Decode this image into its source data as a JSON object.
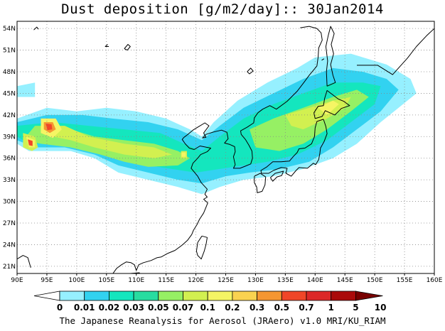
{
  "title": "Dust deposition [g/m2/day]:: 30Jan2014",
  "credit": "The Japanese Reanalysis for Aerosol (JRAero) v1.0 MRI/KU_RIAM",
  "axes": {
    "lon_labels": [
      "90E",
      "95E",
      "100E",
      "105E",
      "110E",
      "115E",
      "120E",
      "125E",
      "130E",
      "135E",
      "140E",
      "145E",
      "150E",
      "155E",
      "160E"
    ],
    "lat_labels": [
      "54N",
      "51N",
      "48N",
      "45N",
      "42N",
      "39N",
      "36N",
      "33N",
      "30N",
      "27N",
      "24N",
      "21N"
    ],
    "lon_range": [
      90,
      160
    ],
    "lat_range": [
      20,
      55
    ],
    "grid": "dotted"
  },
  "colorbar": {
    "labels": [
      "0",
      "0.01",
      "0.02",
      "0.03",
      "0.05",
      "0.07",
      "0.1",
      "0.2",
      "0.3",
      "0.5",
      "0.7",
      "1",
      "5",
      "10"
    ],
    "colors": [
      "#ffffff",
      "#96f0ff",
      "#32d2f0",
      "#14e6be",
      "#28dca0",
      "#96f064",
      "#d2f050",
      "#f5f564",
      "#fad250",
      "#f59632",
      "#f04628",
      "#dc2828",
      "#aa0a0a",
      "#780000"
    ]
  },
  "dust_regions": [
    {
      "level": 1,
      "polygon": [
        [
          90,
          41.5
        ],
        [
          95,
          43
        ],
        [
          100,
          42.5
        ],
        [
          105,
          43
        ],
        [
          110,
          42.5
        ],
        [
          115,
          41.5
        ],
        [
          119,
          40
        ],
        [
          121,
          39
        ],
        [
          123,
          41
        ],
        [
          127,
          44
        ],
        [
          132,
          46.5
        ],
        [
          137,
          48.5
        ],
        [
          140,
          50
        ],
        [
          146,
          50.5
        ],
        [
          152,
          49
        ],
        [
          156,
          47
        ],
        [
          157,
          45
        ],
        [
          154,
          43
        ],
        [
          151,
          41
        ],
        [
          147,
          38
        ],
        [
          143,
          36
        ],
        [
          138,
          34.5
        ],
        [
          133,
          33.5
        ],
        [
          128,
          33
        ],
        [
          124,
          32
        ],
        [
          121,
          31
        ],
        [
          117,
          32
        ],
        [
          112,
          33
        ],
        [
          107,
          34
        ],
        [
          103,
          36
        ],
        [
          99,
          37
        ],
        [
          95,
          37
        ],
        [
          92,
          37
        ],
        [
          90,
          38
        ]
      ]
    },
    {
      "level": 1,
      "polygon": [
        [
          90,
          46
        ],
        [
          93,
          46.5
        ],
        [
          93,
          44.5
        ],
        [
          90,
          44.5
        ]
      ]
    },
    {
      "level": 2,
      "polygon": [
        [
          90,
          41
        ],
        [
          95,
          42
        ],
        [
          101,
          42
        ],
        [
          106,
          41.5
        ],
        [
          112,
          41
        ],
        [
          117,
          40
        ],
        [
          121,
          38.5
        ],
        [
          124,
          40.5
        ],
        [
          128,
          43
        ],
        [
          133,
          45
        ],
        [
          138,
          47
        ],
        [
          143,
          48.5
        ],
        [
          148,
          48
        ],
        [
          152,
          47
        ],
        [
          154,
          45.5
        ],
        [
          151,
          42.5
        ],
        [
          147,
          40
        ],
        [
          143,
          37.5
        ],
        [
          139,
          35.5
        ],
        [
          134,
          34.5
        ],
        [
          129,
          34
        ],
        [
          125,
          33.5
        ],
        [
          121,
          32.5
        ],
        [
          117,
          33
        ],
        [
          112,
          34
        ],
        [
          107,
          35
        ],
        [
          103,
          36.5
        ],
        [
          98,
          37.5
        ],
        [
          93,
          37.5
        ],
        [
          90,
          38.5
        ]
      ]
    },
    {
      "level": 3,
      "polygon": [
        [
          90,
          40.5
        ],
        [
          96,
          41
        ],
        [
          102,
          40.5
        ],
        [
          108,
          40
        ],
        [
          114,
          39.5
        ],
        [
          118,
          38
        ],
        [
          121,
          37
        ],
        [
          124,
          39
        ],
        [
          128,
          41.5
        ],
        [
          133,
          43.5
        ],
        [
          138,
          45
        ],
        [
          143,
          46.5
        ],
        [
          148,
          46.5
        ],
        [
          151,
          46
        ],
        [
          150,
          43.5
        ],
        [
          146,
          41
        ],
        [
          142,
          38.5
        ],
        [
          137,
          36.5
        ],
        [
          132,
          35.5
        ],
        [
          128,
          35
        ],
        [
          124,
          34.5
        ],
        [
          120,
          34
        ],
        [
          116,
          34.5
        ],
        [
          112,
          35
        ],
        [
          107,
          36
        ],
        [
          102,
          37.5
        ],
        [
          97,
          38
        ],
        [
          92,
          38
        ],
        [
          90,
          39
        ]
      ]
    },
    {
      "level": 5,
      "polygon": [
        [
          93,
          40.5
        ],
        [
          97,
          40.5
        ],
        [
          103,
          39
        ],
        [
          108,
          38.5
        ],
        [
          113,
          38
        ],
        [
          117,
          37
        ],
        [
          119,
          36
        ],
        [
          117,
          35
        ],
        [
          112,
          34.8
        ],
        [
          108,
          35.5
        ],
        [
          104,
          36.5
        ],
        [
          99,
          37.5
        ],
        [
          94,
          38
        ],
        [
          91,
          38.5
        ]
      ]
    },
    {
      "level": 5,
      "polygon": [
        [
          129,
          40
        ],
        [
          133,
          41.5
        ],
        [
          138,
          43
        ],
        [
          143,
          44.5
        ],
        [
          147,
          45.5
        ],
        [
          149,
          44.5
        ],
        [
          146,
          42.5
        ],
        [
          142,
          40
        ],
        [
          138,
          38
        ],
        [
          134,
          37
        ],
        [
          130,
          37.5
        ]
      ]
    },
    {
      "level": 6,
      "polygon": [
        [
          95,
          40.5
        ],
        [
          98,
          40.5
        ],
        [
          102,
          39
        ],
        [
          108,
          38
        ],
        [
          113,
          37.5
        ],
        [
          116,
          36.5
        ],
        [
          113,
          36
        ],
        [
          108,
          36.5
        ],
        [
          103,
          37.5
        ],
        [
          99,
          38.5
        ],
        [
          96,
          39
        ]
      ]
    },
    {
      "level": 6,
      "polygon": [
        [
          91,
          39.5
        ],
        [
          93,
          39
        ],
        [
          93.5,
          37.5
        ],
        [
          92.5,
          37
        ],
        [
          91,
          37.5
        ]
      ]
    },
    {
      "level": 6,
      "polygon": [
        [
          135,
          42
        ],
        [
          139,
          43
        ],
        [
          143,
          44
        ],
        [
          146,
          44.5
        ],
        [
          145,
          43
        ],
        [
          142,
          41.5
        ],
        [
          138,
          40
        ],
        [
          136,
          40.5
        ]
      ]
    },
    {
      "level": 6,
      "polygon": [
        [
          117.5,
          37
        ],
        [
          118.5,
          37
        ],
        [
          118.5,
          36
        ],
        [
          117.5,
          36
        ]
      ]
    },
    {
      "level": 7,
      "polygon": [
        [
          94,
          41.5
        ],
        [
          96.5,
          41.5
        ],
        [
          97.5,
          40
        ],
        [
          96,
          38.8
        ],
        [
          94,
          39.5
        ]
      ]
    },
    {
      "level": 7,
      "polygon": [
        [
          91.5,
          39
        ],
        [
          93,
          38.5
        ],
        [
          93,
          37.5
        ],
        [
          92,
          37.5
        ]
      ]
    },
    {
      "level": 7,
      "polygon": [
        [
          117.6,
          36.8
        ],
        [
          118.3,
          36.8
        ],
        [
          118.3,
          36.2
        ],
        [
          117.6,
          36.2
        ]
      ]
    },
    {
      "level": 7,
      "polygon": [
        [
          140.5,
          43
        ],
        [
          143,
          44
        ],
        [
          144,
          43.5
        ],
        [
          142,
          42
        ]
      ]
    },
    {
      "level": 9,
      "polygon": [
        [
          94.5,
          41
        ],
        [
          96,
          41
        ],
        [
          96.5,
          40
        ],
        [
          95.5,
          39.5
        ],
        [
          94.5,
          40
        ]
      ]
    },
    {
      "level": 10,
      "polygon": [
        [
          94.8,
          40.8
        ],
        [
          95.8,
          40.7
        ],
        [
          95.9,
          40
        ],
        [
          95.1,
          39.9
        ]
      ]
    },
    {
      "level": 10,
      "polygon": [
        [
          91.8,
          38.6
        ],
        [
          92.6,
          38.4
        ],
        [
          92.6,
          37.7
        ],
        [
          92,
          37.8
        ]
      ]
    }
  ]
}
